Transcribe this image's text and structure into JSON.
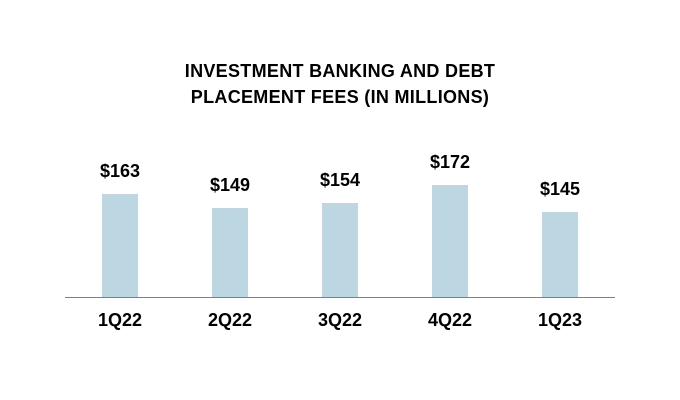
{
  "chart_data": {
    "type": "bar",
    "title": "INVESTMENT BANKING AND DEBT PLACEMENT FEES (IN MILLIONS)",
    "title_line1": "INVESTMENT BANKING AND DEBT",
    "title_line2": "PLACEMENT FEES (IN MILLIONS)",
    "categories": [
      "1Q22",
      "2Q22",
      "3Q22",
      "4Q22",
      "1Q23"
    ],
    "values": [
      163,
      149,
      154,
      172,
      145
    ],
    "value_labels": [
      "$163",
      "$149",
      "$154",
      "$172",
      "$145"
    ],
    "xlabel": "",
    "ylabel": "",
    "ylim": [
      60,
      210
    ],
    "grid": false,
    "legend": false,
    "bar_color": "#bdd7e2",
    "axis_line_color": "#808080",
    "text_color": "#000000",
    "background_color": "#ffffff"
  }
}
